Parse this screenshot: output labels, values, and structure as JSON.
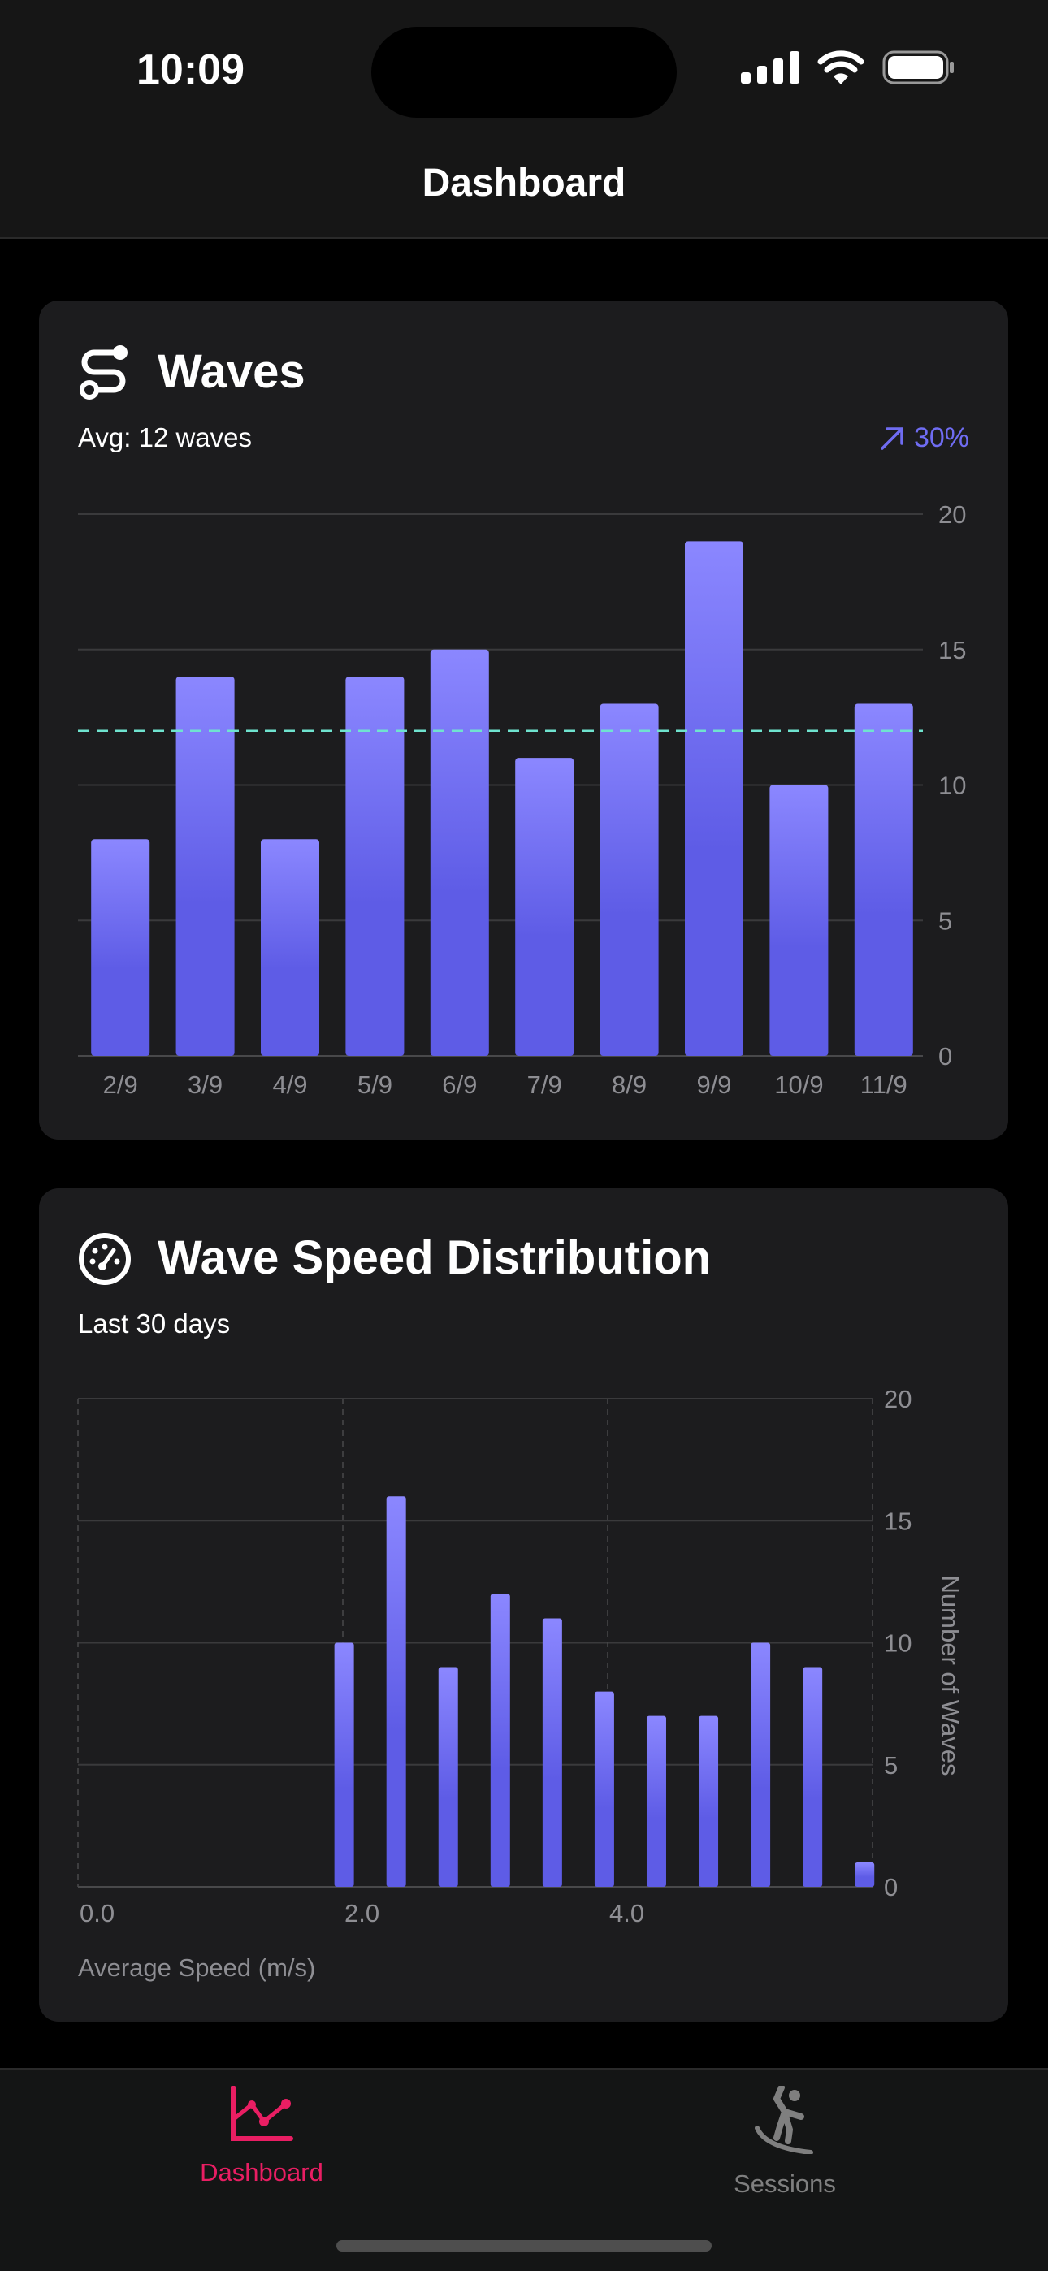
{
  "status_bar": {
    "time": "10:09"
  },
  "nav": {
    "title": "Dashboard"
  },
  "waves_card": {
    "title": "Waves",
    "icon": "path-s-icon",
    "subtitle": "Avg: 12 waves",
    "trend": "30%",
    "trend_icon": "arrow-up-right-icon",
    "chart_data": {
      "type": "bar",
      "categories": [
        "2/9",
        "3/9",
        "4/9",
        "5/9",
        "6/9",
        "7/9",
        "8/9",
        "9/9",
        "10/9",
        "11/9"
      ],
      "values": [
        8,
        14,
        8,
        14,
        15,
        11,
        13,
        19,
        10,
        13
      ],
      "average_line": 12,
      "ylim": [
        0,
        20
      ],
      "yticks": [
        0,
        5,
        10,
        15,
        20
      ],
      "grid": true,
      "bar_color_top": "#8b87ff",
      "bar_color_bottom": "#5e5ce6",
      "average_line_color": "#6fe3cf"
    }
  },
  "speed_card": {
    "title": "Wave Speed Distribution",
    "icon": "speedometer-icon",
    "subtitle": "Last 30 days",
    "chart_data": {
      "type": "bar",
      "x": [
        2.0,
        2.4,
        2.8,
        3.2,
        3.6,
        4.0,
        4.4,
        4.8,
        5.2,
        5.6,
        6.0
      ],
      "values": [
        10,
        16,
        9,
        12,
        11,
        8,
        7,
        7,
        10,
        9,
        1
      ],
      "xlim": [
        0,
        6
      ],
      "xticks": [
        "0.0",
        "2.0",
        "4.0"
      ],
      "ylim": [
        0,
        20
      ],
      "yticks": [
        0,
        5,
        10,
        15,
        20
      ],
      "xlabel": "Average Speed (m/s)",
      "ylabel": "Number of Waves",
      "grid": true
    }
  },
  "tabs": [
    {
      "label": "Dashboard",
      "icon": "chart-line-icon",
      "active": true,
      "color": "#e91e63"
    },
    {
      "label": "Sessions",
      "icon": "surfer-icon",
      "active": false,
      "color": "#7f7f7f"
    }
  ]
}
